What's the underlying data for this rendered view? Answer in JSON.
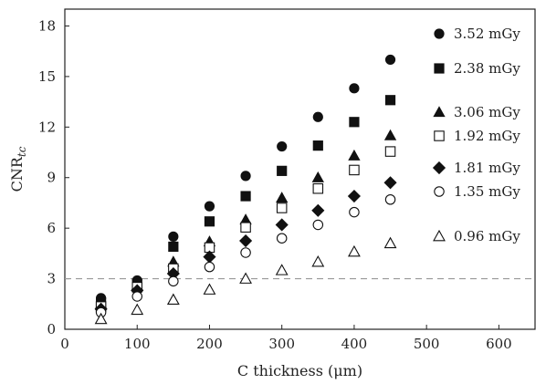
{
  "chart_data": {
    "type": "scatter",
    "xlabel": "C thickness (μm)",
    "ylabel": "CNR",
    "ylabel_sub": "tc",
    "xlim": [
      0,
      650
    ],
    "ylim": [
      0,
      19
    ],
    "x_ticks": [
      0,
      100,
      200,
      300,
      400,
      500,
      600
    ],
    "y_ticks": [
      0,
      3,
      6,
      9,
      12,
      15,
      18
    ],
    "reference_line": {
      "y": 3,
      "style": "dashed",
      "color": "#999999"
    },
    "grid": false,
    "legend_placement": "right",
    "x": [
      50,
      100,
      150,
      200,
      250,
      300,
      350,
      400,
      450
    ],
    "series": [
      {
        "name": "3.52 mGy",
        "marker": "circle",
        "filled": true,
        "values": [
          1.85,
          2.9,
          5.5,
          7.3,
          9.1,
          10.85,
          12.6,
          14.3,
          16.0
        ]
      },
      {
        "name": "2.38 mGy",
        "marker": "square",
        "filled": true,
        "values": [
          1.6,
          2.7,
          4.9,
          6.4,
          7.9,
          9.4,
          10.9,
          12.3,
          13.6
        ]
      },
      {
        "name": "3.06 mGy",
        "marker": "triangle",
        "filled": true,
        "values": [
          1.5,
          2.6,
          4.0,
          5.2,
          6.5,
          7.8,
          9.0,
          10.3,
          11.5
        ]
      },
      {
        "name": "1.92 mGy",
        "marker": "square",
        "filled": false,
        "values": [
          1.35,
          2.5,
          3.6,
          4.85,
          6.05,
          7.2,
          8.35,
          9.45,
          10.55
        ]
      },
      {
        "name": "1.81 mGy",
        "marker": "diamond",
        "filled": true,
        "values": [
          1.2,
          2.3,
          3.3,
          4.3,
          5.25,
          6.2,
          7.05,
          7.9,
          8.7
        ]
      },
      {
        "name": "1.35 mGy",
        "marker": "circle",
        "filled": false,
        "values": [
          1.0,
          1.95,
          2.85,
          3.7,
          4.55,
          5.4,
          6.2,
          6.95,
          7.7
        ]
      },
      {
        "name": "0.96 mGy",
        "marker": "triangle",
        "filled": false,
        "values": [
          0.6,
          1.15,
          1.75,
          2.35,
          3.0,
          3.5,
          4.0,
          4.6,
          5.1
        ]
      }
    ]
  }
}
